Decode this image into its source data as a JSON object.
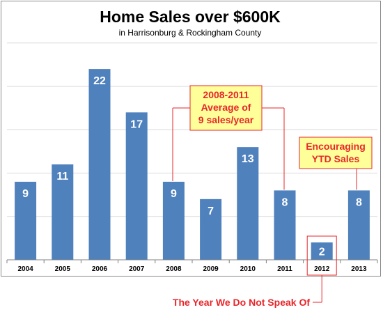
{
  "chart_data": {
    "type": "bar",
    "title": "Home Sales over $600K",
    "subtitle": "in Harrisonburg & Rockingham County",
    "categories": [
      "2004",
      "2005",
      "2006",
      "2007",
      "2008",
      "2009",
      "2010",
      "2011",
      "2012",
      "2013"
    ],
    "values": [
      9,
      11,
      22,
      17,
      9,
      7,
      13,
      8,
      2,
      8
    ],
    "ylim": [
      0,
      25
    ],
    "gridlines": [
      5,
      10,
      15,
      20,
      25
    ],
    "grid": true,
    "legend": "none",
    "bar_color": "#4f81bd",
    "annotations": [
      {
        "lines": [
          "2008-2011",
          "Average of",
          "9 sales/year"
        ]
      },
      {
        "lines": [
          "Encouraging",
          "YTD Sales"
        ]
      },
      {
        "lines": [
          "The Year We Do Not Speak Of"
        ]
      }
    ]
  },
  "colors": {
    "annotation_fill": "#ffff99",
    "annotation_text": "#e8262a",
    "annotation_line": "#e8262a",
    "grid": "#d9d9d9",
    "axis": "#808080"
  }
}
